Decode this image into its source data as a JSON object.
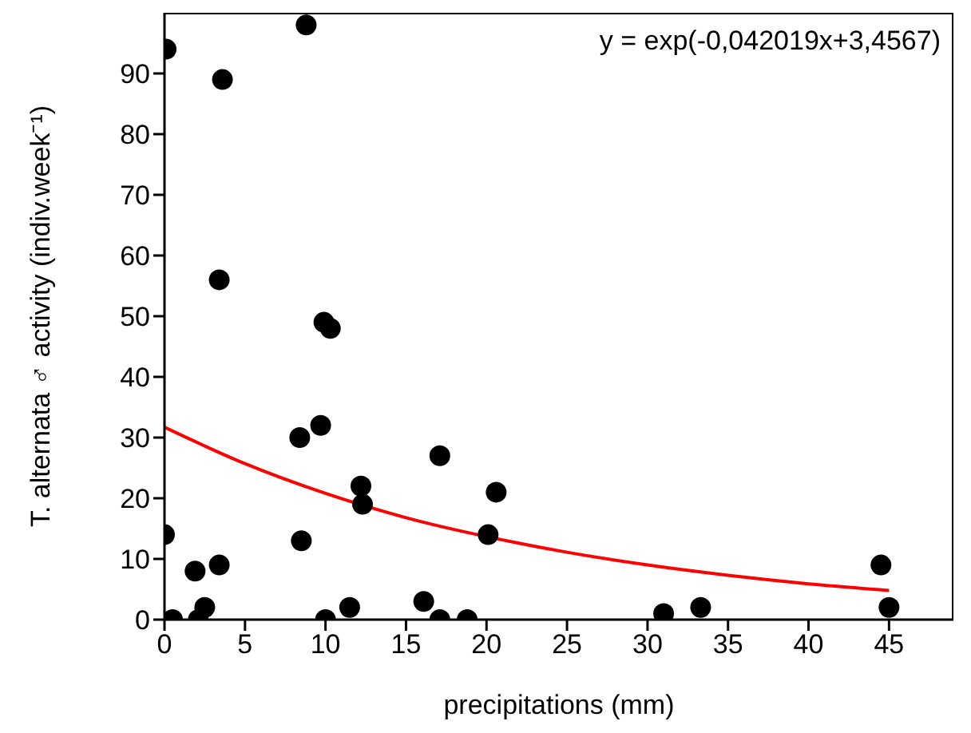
{
  "chart_data": {
    "type": "scatter",
    "xlabel": "precipitations (mm)",
    "ylabel": "T. alternata ♂ activity (indiv.week⁻¹)",
    "annotations": [
      "y = exp(-0,042019x+3,4567)"
    ],
    "xlim": [
      0,
      49
    ],
    "ylim": [
      0,
      100
    ],
    "xticks": [
      0,
      5,
      10,
      15,
      20,
      25,
      30,
      35,
      40,
      45
    ],
    "yticks": [
      0,
      10,
      20,
      30,
      40,
      50,
      60,
      70,
      80,
      90
    ],
    "grid": false,
    "marker": "circle",
    "series": [
      {
        "color": "#000000",
        "x": [
          0.1,
          8.8,
          3.6,
          3.4,
          9.9,
          10.3,
          8.4,
          9.7,
          12.2,
          12.3,
          0,
          8.5,
          1.9,
          3.4,
          0.5,
          2.1,
          2.5,
          10,
          11.5,
          16.1,
          17.1,
          20.6,
          20.1,
          17.1,
          18.8,
          31,
          33.3,
          44.5,
          45
        ],
        "values": [
          94,
          98,
          89,
          56,
          49,
          48,
          30,
          32,
          22,
          19,
          14,
          13,
          8,
          9,
          0,
          0,
          2,
          0,
          2,
          3,
          27,
          21,
          14,
          0,
          0,
          1,
          2,
          9,
          2
        ]
      },
      {
        "type": "line",
        "color": "#ff0000",
        "marker": "none",
        "x": [
          0,
          5,
          10,
          15,
          22,
          25,
          30,
          35,
          40,
          45
        ],
        "values": [
          31.7,
          25.7,
          20.8,
          16.8,
          12.6,
          11.1,
          9.0,
          7.3,
          5.9,
          4.8
        ]
      }
    ]
  }
}
